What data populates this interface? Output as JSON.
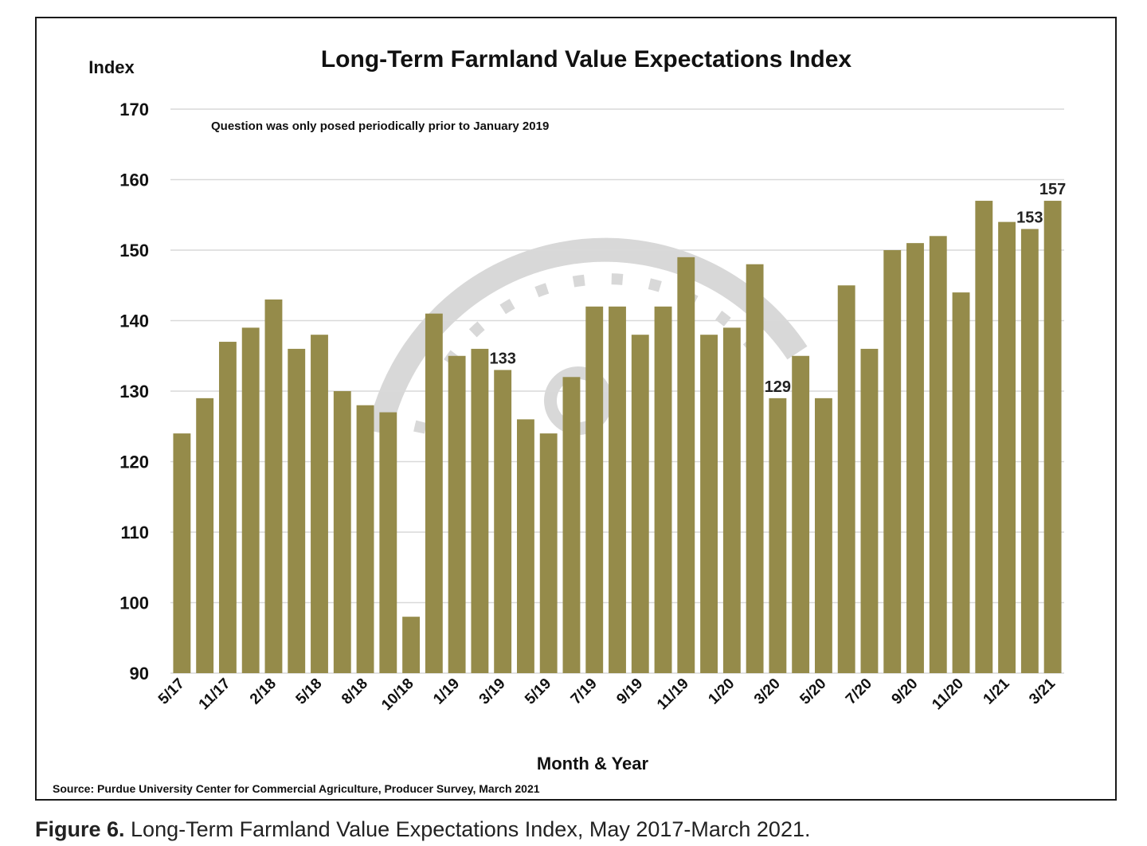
{
  "chart_data": {
    "type": "bar",
    "title": "Long-Term Farmland Value Expectations Index",
    "ylabel": "Index",
    "xlabel": "Month & Year",
    "note": "Question was only posed periodically prior to January 2019",
    "source": "Source: Purdue University Center for Commercial Agriculture, Producer Survey, March 2021",
    "ylim": [
      90,
      170
    ],
    "yticks": [
      90,
      100,
      110,
      120,
      130,
      140,
      150,
      160,
      170
    ],
    "grid": true,
    "bar_color": "#958b4a",
    "values": [
      124,
      129,
      137,
      139,
      143,
      136,
      138,
      130,
      128,
      127,
      98,
      141,
      135,
      136,
      133,
      126,
      124,
      132,
      142,
      142,
      138,
      142,
      149,
      138,
      139,
      148,
      129,
      135,
      129,
      145,
      136,
      150,
      151,
      152,
      144,
      157,
      154,
      153,
      157
    ],
    "tick_labels": [
      {
        "index": 0,
        "label": "5/17"
      },
      {
        "index": 2,
        "label": "11/17"
      },
      {
        "index": 4,
        "label": "2/18"
      },
      {
        "index": 6,
        "label": "5/18"
      },
      {
        "index": 8,
        "label": "8/18"
      },
      {
        "index": 10,
        "label": "10/18"
      },
      {
        "index": 12,
        "label": "1/19"
      },
      {
        "index": 14,
        "label": "3/19"
      },
      {
        "index": 16,
        "label": "5/19"
      },
      {
        "index": 18,
        "label": "7/19"
      },
      {
        "index": 20,
        "label": "9/19"
      },
      {
        "index": 22,
        "label": "11/19"
      },
      {
        "index": 24,
        "label": "1/20"
      },
      {
        "index": 26,
        "label": "3/20"
      },
      {
        "index": 28,
        "label": "5/20"
      },
      {
        "index": 30,
        "label": "7/20"
      },
      {
        "index": 32,
        "label": "9/20"
      },
      {
        "index": 34,
        "label": "11/20"
      },
      {
        "index": 36,
        "label": "1/21"
      },
      {
        "index": 38,
        "label": "3/21"
      }
    ],
    "annotations": [
      {
        "index": 14,
        "label": "133"
      },
      {
        "index": 26,
        "label": "129"
      },
      {
        "index": 37,
        "label": "153"
      },
      {
        "index": 38,
        "label": "157"
      }
    ]
  },
  "caption": {
    "figure_label": "Figure 6.",
    "text": " Long-Term Farmland Value Expectations Index, May 2017-March 2021."
  }
}
